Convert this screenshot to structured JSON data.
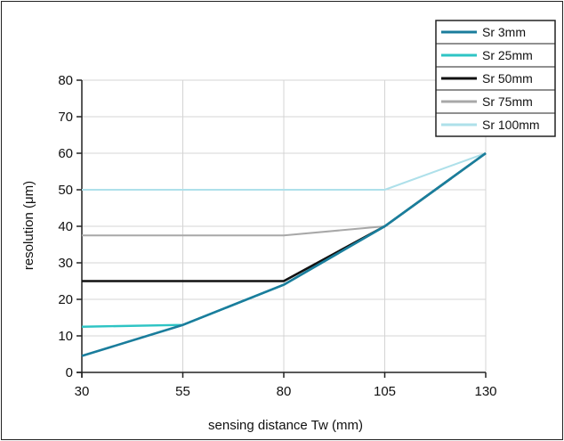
{
  "chart_data": {
    "type": "line",
    "title": "",
    "xlabel": "sensing distance Tw (mm)",
    "ylabel": "resolution (μm)",
    "x_ticks": [
      30,
      55,
      80,
      105,
      130
    ],
    "y_ticks": [
      0,
      10,
      20,
      30,
      40,
      50,
      60,
      70,
      80
    ],
    "xlim": [
      30,
      130
    ],
    "ylim": [
      0,
      80
    ],
    "grid": true,
    "legend_position": "top-right",
    "series": [
      {
        "name": "Sr 3mm",
        "color": "#1a7d9c",
        "points": [
          [
            30,
            4.5
          ],
          [
            55,
            13
          ],
          [
            80,
            24
          ],
          [
            105,
            40
          ],
          [
            130,
            60
          ]
        ]
      },
      {
        "name": "Sr 25mm",
        "color": "#2ec4c4",
        "points": [
          [
            30,
            12.5
          ],
          [
            55,
            13
          ],
          [
            80,
            24
          ],
          [
            105,
            40
          ],
          [
            130,
            60
          ]
        ]
      },
      {
        "name": "Sr 50mm",
        "color": "#111111",
        "points": [
          [
            30,
            25
          ],
          [
            55,
            25
          ],
          [
            80,
            25
          ],
          [
            105,
            40
          ],
          [
            130,
            60
          ]
        ]
      },
      {
        "name": "Sr 75mm",
        "color": "#a8a8a8",
        "points": [
          [
            30,
            37.5
          ],
          [
            55,
            37.5
          ],
          [
            80,
            37.5
          ],
          [
            105,
            40
          ],
          [
            130,
            60
          ]
        ]
      },
      {
        "name": "Sr 100mm",
        "color": "#aee0ea",
        "points": [
          [
            30,
            50
          ],
          [
            55,
            50
          ],
          [
            80,
            50
          ],
          [
            105,
            50
          ],
          [
            130,
            60
          ]
        ]
      }
    ]
  }
}
